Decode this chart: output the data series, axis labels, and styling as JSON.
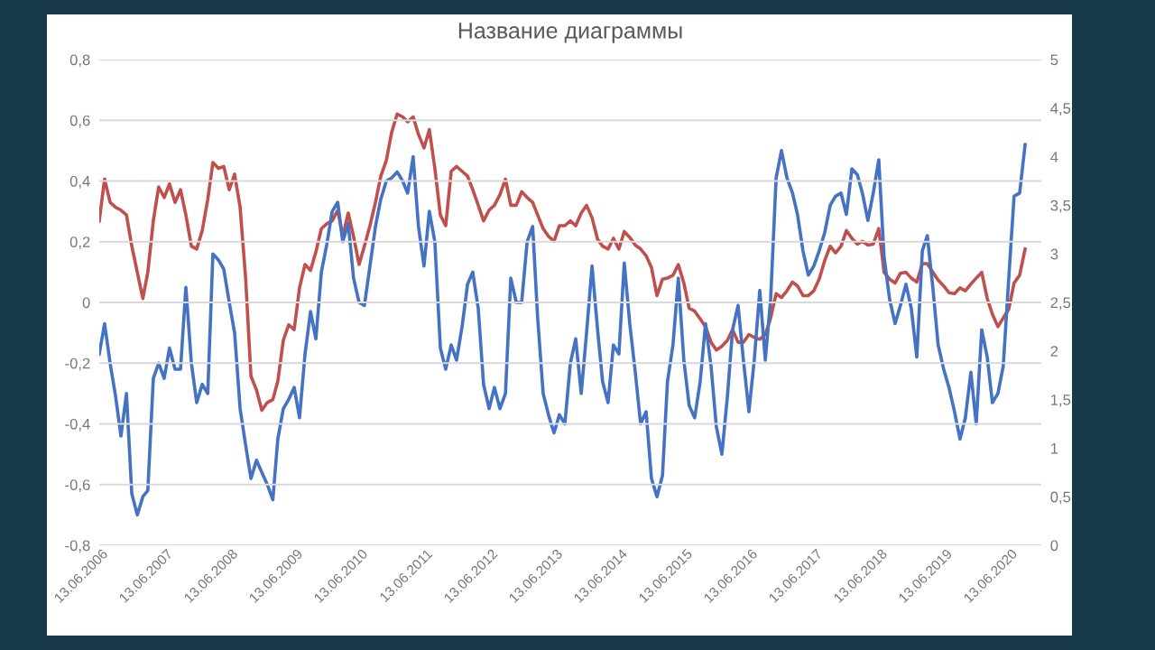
{
  "chart_data": {
    "type": "line",
    "title": "Название диаграммы",
    "x": [
      "2006-06",
      "2006-07",
      "2006-08",
      "2006-09",
      "2006-10",
      "2006-11",
      "2006-12",
      "2007-01",
      "2007-02",
      "2007-03",
      "2007-04",
      "2007-05",
      "2007-06",
      "2007-07",
      "2007-08",
      "2007-09",
      "2007-10",
      "2007-11",
      "2007-12",
      "2008-01",
      "2008-02",
      "2008-03",
      "2008-04",
      "2008-05",
      "2008-06",
      "2008-07",
      "2008-08",
      "2008-09",
      "2008-10",
      "2008-11",
      "2008-12",
      "2009-01",
      "2009-02",
      "2009-03",
      "2009-04",
      "2009-05",
      "2009-06",
      "2009-07",
      "2009-08",
      "2009-09",
      "2009-10",
      "2009-11",
      "2009-12",
      "2010-01",
      "2010-02",
      "2010-03",
      "2010-04",
      "2010-05",
      "2010-06",
      "2010-07",
      "2010-08",
      "2010-09",
      "2010-10",
      "2010-11",
      "2010-12",
      "2011-01",
      "2011-02",
      "2011-03",
      "2011-04",
      "2011-05",
      "2011-06",
      "2011-07",
      "2011-08",
      "2011-09",
      "2011-10",
      "2011-11",
      "2011-12",
      "2012-01",
      "2012-02",
      "2012-03",
      "2012-04",
      "2012-05",
      "2012-06",
      "2012-07",
      "2012-08",
      "2012-09",
      "2012-10",
      "2012-11",
      "2012-12",
      "2013-01",
      "2013-02",
      "2013-03",
      "2013-04",
      "2013-05",
      "2013-06",
      "2013-07",
      "2013-08",
      "2013-09",
      "2013-10",
      "2013-11",
      "2013-12",
      "2014-01",
      "2014-02",
      "2014-03",
      "2014-04",
      "2014-05",
      "2014-06",
      "2014-07",
      "2014-08",
      "2014-09",
      "2014-10",
      "2014-11",
      "2014-12",
      "2015-01",
      "2015-02",
      "2015-03",
      "2015-04",
      "2015-05",
      "2015-06",
      "2015-07",
      "2015-08",
      "2015-09",
      "2015-10",
      "2015-11",
      "2015-12",
      "2016-01",
      "2016-02",
      "2016-03",
      "2016-04",
      "2016-05",
      "2016-06",
      "2016-07",
      "2016-08",
      "2016-09",
      "2016-10",
      "2016-11",
      "2016-12",
      "2017-01",
      "2017-02",
      "2017-03",
      "2017-04",
      "2017-05",
      "2017-06",
      "2017-07",
      "2017-08",
      "2017-09",
      "2017-10",
      "2017-11",
      "2017-12",
      "2018-01",
      "2018-02",
      "2018-03",
      "2018-04",
      "2018-05",
      "2018-06",
      "2018-07",
      "2018-08",
      "2018-09",
      "2018-10",
      "2018-11",
      "2018-12",
      "2019-01",
      "2019-02",
      "2019-03",
      "2019-04",
      "2019-05",
      "2019-06",
      "2019-07",
      "2019-08",
      "2019-09",
      "2019-10",
      "2019-11",
      "2019-12",
      "2020-01",
      "2020-02",
      "2020-03",
      "2020-04",
      "2020-05",
      "2020-06",
      "2020-07",
      "2020-08",
      "2020-09"
    ],
    "series": [
      {
        "color": "#4472c4",
        "values": [
          -0.17,
          -0.07,
          -0.2,
          -0.31,
          -0.44,
          -0.3,
          -0.63,
          -0.7,
          -0.64,
          -0.62,
          -0.25,
          -0.2,
          -0.25,
          -0.15,
          -0.22,
          -0.22,
          0.05,
          -0.2,
          -0.33,
          -0.27,
          -0.3,
          0.16,
          0.14,
          0.11,
          0.0,
          -0.1,
          -0.35,
          -0.47,
          -0.58,
          -0.52,
          -0.56,
          -0.6,
          -0.65,
          -0.45,
          -0.35,
          -0.32,
          -0.28,
          -0.38,
          -0.17,
          -0.03,
          -0.12,
          0.1,
          0.19,
          0.3,
          0.33,
          0.2,
          0.26,
          0.08,
          0.0,
          -0.01,
          0.12,
          0.25,
          0.34,
          0.4,
          0.41,
          0.43,
          0.4,
          0.36,
          0.48,
          0.25,
          0.12,
          0.3,
          0.2,
          -0.15,
          -0.22,
          -0.14,
          -0.19,
          -0.08,
          0.06,
          0.1,
          -0.02,
          -0.27,
          -0.35,
          -0.28,
          -0.35,
          -0.3,
          0.08,
          0.0,
          0.0,
          0.2,
          0.25,
          -0.05,
          -0.3,
          -0.37,
          -0.43,
          -0.37,
          -0.4,
          -0.2,
          -0.12,
          -0.3,
          -0.1,
          0.12,
          -0.09,
          -0.26,
          -0.33,
          -0.14,
          -0.17,
          0.13,
          -0.07,
          -0.23,
          -0.4,
          -0.36,
          -0.58,
          -0.64,
          -0.57,
          -0.26,
          -0.14,
          0.08,
          -0.19,
          -0.34,
          -0.38,
          -0.26,
          -0.07,
          -0.21,
          -0.41,
          -0.5,
          -0.31,
          -0.09,
          -0.01,
          -0.19,
          -0.36,
          -0.19,
          0.04,
          -0.19,
          0.01,
          0.41,
          0.5,
          0.41,
          0.36,
          0.29,
          0.17,
          0.09,
          0.12,
          0.17,
          0.23,
          0.32,
          0.35,
          0.36,
          0.29,
          0.44,
          0.42,
          0.36,
          0.27,
          0.36,
          0.47,
          0.15,
          0.01,
          -0.07,
          -0.01,
          0.06,
          -0.02,
          -0.18,
          0.17,
          0.22,
          0.05,
          -0.14,
          -0.22,
          -0.28,
          -0.36,
          -0.45,
          -0.38,
          -0.23,
          -0.4,
          -0.09,
          -0.18,
          -0.33,
          -0.3,
          -0.21,
          0.08,
          0.35,
          0.36,
          0.52
        ]
      },
      {
        "color": "#c0504d",
        "axis": "y2",
        "values": [
          3.34,
          3.77,
          3.53,
          3.48,
          3.45,
          3.4,
          3.08,
          2.81,
          2.54,
          2.81,
          3.34,
          3.69,
          3.58,
          3.72,
          3.53,
          3.66,
          3.4,
          3.08,
          3.05,
          3.24,
          3.56,
          3.94,
          3.88,
          3.9,
          3.66,
          3.82,
          3.48,
          2.75,
          1.74,
          1.6,
          1.39,
          1.47,
          1.5,
          1.69,
          2.11,
          2.27,
          2.22,
          2.65,
          2.89,
          2.83,
          3.02,
          3.26,
          3.31,
          3.34,
          3.45,
          3.18,
          3.42,
          3.18,
          2.89,
          3.08,
          3.29,
          3.53,
          3.8,
          3.96,
          4.25,
          4.44,
          4.41,
          4.36,
          4.41,
          4.23,
          4.09,
          4.28,
          3.88,
          3.4,
          3.29,
          3.85,
          3.9,
          3.85,
          3.8,
          3.66,
          3.5,
          3.34,
          3.45,
          3.5,
          3.61,
          3.77,
          3.5,
          3.5,
          3.64,
          3.58,
          3.53,
          3.4,
          3.26,
          3.18,
          3.13,
          3.29,
          3.29,
          3.34,
          3.29,
          3.42,
          3.5,
          3.37,
          3.15,
          3.08,
          3.05,
          3.16,
          3.05,
          3.23,
          3.17,
          3.09,
          3.05,
          2.98,
          2.86,
          2.57,
          2.74,
          2.75,
          2.78,
          2.89,
          2.7,
          2.44,
          2.41,
          2.33,
          2.25,
          2.09,
          2.01,
          2.05,
          2.11,
          2.22,
          2.09,
          2.09,
          2.17,
          2.14,
          2.12,
          2.17,
          2.34,
          2.59,
          2.55,
          2.62,
          2.71,
          2.67,
          2.57,
          2.57,
          2.62,
          2.74,
          2.93,
          3.08,
          3.01,
          3.08,
          3.24,
          3.16,
          3.1,
          3.13,
          3.09,
          3.1,
          3.26,
          2.81,
          2.74,
          2.7,
          2.8,
          2.81,
          2.75,
          2.71,
          2.9,
          2.9,
          2.81,
          2.73,
          2.67,
          2.6,
          2.59,
          2.65,
          2.62,
          2.69,
          2.75,
          2.81,
          2.54,
          2.38,
          2.25,
          2.34,
          2.43,
          2.7,
          2.78,
          3.05
        ]
      }
    ],
    "xlim": [
      "2006-06-01",
      "2020-12-01"
    ],
    "xticks": [
      {
        "value": "2006-06-13",
        "label": "13.06.2006"
      },
      {
        "value": "2007-06-13",
        "label": "13.06.2007"
      },
      {
        "value": "2008-06-13",
        "label": "13.06.2008"
      },
      {
        "value": "2009-06-13",
        "label": "13.06.2009"
      },
      {
        "value": "2010-06-13",
        "label": "13.06.2010"
      },
      {
        "value": "2011-06-13",
        "label": "13.06.2011"
      },
      {
        "value": "2012-06-13",
        "label": "13.06.2012"
      },
      {
        "value": "2013-06-13",
        "label": "13.06.2013"
      },
      {
        "value": "2014-06-13",
        "label": "13.06.2014"
      },
      {
        "value": "2015-06-13",
        "label": "13.06.2015"
      },
      {
        "value": "2016-06-13",
        "label": "13.06.2016"
      },
      {
        "value": "2017-06-13",
        "label": "13.06.2017"
      },
      {
        "value": "2018-06-13",
        "label": "13.06.2018"
      },
      {
        "value": "2019-06-13",
        "label": "13.06.2019"
      },
      {
        "value": "2020-06-13",
        "label": "13.06.2020"
      }
    ],
    "ylim": [
      -0.8,
      0.8
    ],
    "yticks": [
      {
        "value": -0.8,
        "label": "-0,8"
      },
      {
        "value": -0.6,
        "label": "-0,6"
      },
      {
        "value": -0.4,
        "label": "-0,4"
      },
      {
        "value": -0.2,
        "label": "-0,2"
      },
      0,
      {
        "value": 0.2,
        "label": "0,2"
      },
      {
        "value": 0.4,
        "label": "0,4"
      },
      {
        "value": 0.6,
        "label": "0,6"
      },
      {
        "value": 0.8,
        "label": "0,8"
      }
    ],
    "y2lim": [
      0,
      5
    ],
    "y2ticks": [
      0,
      {
        "value": 0.5,
        "label": "0,5"
      },
      1,
      {
        "value": 1.5,
        "label": "1,5"
      },
      2,
      {
        "value": 2.5,
        "label": "2,5"
      },
      3,
      {
        "value": 3.5,
        "label": "3,5"
      },
      4,
      {
        "value": 4.5,
        "label": "4,5"
      },
      5
    ],
    "grid": "y",
    "marker": "none",
    "line_style": "solid"
  }
}
